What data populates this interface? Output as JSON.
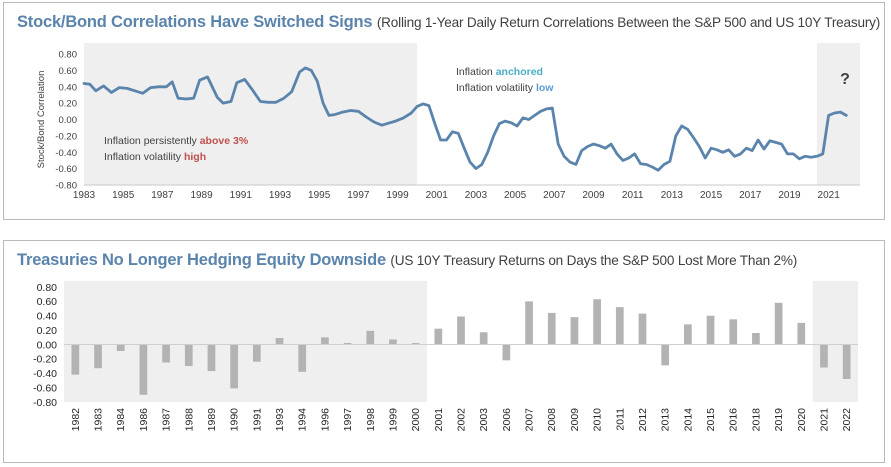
{
  "panel_top": {
    "title": "Stock/Bond Correlations Have Switched Signs",
    "subtitle": "(Rolling 1-Year Daily Return Correlations Between the S&P 500 and US 10Y Treasury)"
  },
  "panel_bottom": {
    "title": "Treasuries No Longer Hedging Equity Downside",
    "subtitle": "(US 10Y Treasury Returns on Days the S&P 500 Lost More Than 2%)"
  },
  "colors": {
    "line": "#5b84ad",
    "bars": "#b3b3b3",
    "shade": "#efefef",
    "text": "#404040",
    "red_highlight": "#c0504d",
    "teal_highlight": "#4bacc6",
    "blue_highlight": "#5b9bd5"
  },
  "chart_data": [
    {
      "type": "line",
      "title": "Stock/Bond Correlations Have Switched Signs",
      "subtitle": "(Rolling 1-Year Daily Return Correlations Between the S&P 500 and US 10Y Treasury)",
      "ylabel": "Stock/Bond Correlation",
      "xlabel": "",
      "ylim": [
        -0.8,
        0.8
      ],
      "yticks": [
        "0.80",
        "0.60",
        "0.40",
        "0.20",
        "0.00",
        "-0.20",
        "-0.40",
        "-0.60",
        "-0.80"
      ],
      "xticks": [
        "1983",
        "1985",
        "1987",
        "1989",
        "1991",
        "1993",
        "1995",
        "1997",
        "1999",
        "2001",
        "2003",
        "2005",
        "2007",
        "2009",
        "2011",
        "2013",
        "2015",
        "2017",
        "2019",
        "2021"
      ],
      "xlim": [
        1983,
        2022.6
      ],
      "shaded_periods": [
        [
          1983,
          2000
        ],
        [
          2020.4,
          2022.6
        ]
      ],
      "grid": false,
      "series": [
        {
          "x": [
            1983.0,
            1983.3,
            1983.6,
            1984.0,
            1984.4,
            1984.8,
            1985.2,
            1985.6,
            1986.0,
            1986.4,
            1986.8,
            1987.2,
            1987.5,
            1987.8,
            1988.2,
            1988.6,
            1988.9,
            1989.3,
            1989.8,
            1990.1,
            1990.5,
            1990.8,
            1991.2,
            1991.6,
            1992.0,
            1992.4,
            1992.8,
            1993.2,
            1993.6,
            1994.0,
            1994.3,
            1994.6,
            1994.9,
            1995.2,
            1995.5,
            1995.8,
            1996.2,
            1996.6,
            1997.0,
            1997.4,
            1997.8,
            1998.2,
            1998.6,
            1998.9,
            1999.3,
            1999.7,
            2000.0,
            2000.3,
            2000.6,
            2000.9,
            2001.2,
            2001.5,
            2001.8,
            2002.1,
            2002.4,
            2002.7,
            2003.0,
            2003.3,
            2003.6,
            2003.9,
            2004.2,
            2004.5,
            2004.8,
            2005.1,
            2005.4,
            2005.7,
            2006.0,
            2006.3,
            2006.6,
            2006.9,
            2007.2,
            2007.5,
            2007.8,
            2008.1,
            2008.4,
            2008.7,
            2009.0,
            2009.3,
            2009.6,
            2009.9,
            2010.2,
            2010.5,
            2010.8,
            2011.1,
            2011.4,
            2011.7,
            2012.0,
            2012.3,
            2012.6,
            2012.9,
            2013.2,
            2013.5,
            2013.8,
            2014.1,
            2014.4,
            2014.7,
            2015.0,
            2015.3,
            2015.6,
            2015.9,
            2016.2,
            2016.5,
            2016.8,
            2017.1,
            2017.4,
            2017.7,
            2018.0,
            2018.3,
            2018.6,
            2018.9,
            2019.2,
            2019.5,
            2019.8,
            2020.1,
            2020.4,
            2020.7,
            2021.0,
            2021.3,
            2021.6,
            2021.9
          ],
          "values": [
            0.44,
            0.43,
            0.35,
            0.41,
            0.33,
            0.39,
            0.38,
            0.35,
            0.32,
            0.39,
            0.4,
            0.4,
            0.46,
            0.26,
            0.25,
            0.26,
            0.48,
            0.52,
            0.27,
            0.2,
            0.22,
            0.45,
            0.49,
            0.36,
            0.22,
            0.21,
            0.21,
            0.26,
            0.34,
            0.58,
            0.63,
            0.6,
            0.47,
            0.2,
            0.05,
            0.06,
            0.09,
            0.11,
            0.1,
            0.03,
            -0.03,
            -0.07,
            -0.04,
            -0.02,
            0.02,
            0.08,
            0.16,
            0.19,
            0.17,
            -0.05,
            -0.25,
            -0.25,
            -0.15,
            -0.17,
            -0.35,
            -0.52,
            -0.6,
            -0.55,
            -0.4,
            -0.2,
            -0.05,
            -0.02,
            -0.04,
            -0.08,
            0.02,
            0.0,
            0.05,
            0.1,
            0.13,
            0.14,
            -0.3,
            -0.45,
            -0.52,
            -0.55,
            -0.38,
            -0.33,
            -0.3,
            -0.32,
            -0.35,
            -0.3,
            -0.42,
            -0.5,
            -0.47,
            -0.42,
            -0.54,
            -0.55,
            -0.58,
            -0.62,
            -0.55,
            -0.51,
            -0.2,
            -0.08,
            -0.12,
            -0.22,
            -0.33,
            -0.47,
            -0.35,
            -0.37,
            -0.4,
            -0.37,
            -0.45,
            -0.42,
            -0.35,
            -0.38,
            -0.25,
            -0.36,
            -0.26,
            -0.28,
            -0.3,
            -0.42,
            -0.42,
            -0.48,
            -0.45,
            -0.46,
            -0.45,
            -0.42,
            0.05,
            0.08,
            0.09,
            0.05
          ]
        }
      ],
      "annotations": [
        {
          "parts": [
            {
              "text": "Inflation persistently ",
              "highlight": false
            },
            {
              "text": "above 3%",
              "highlight": "red"
            }
          ]
        },
        {
          "parts": [
            {
              "text": "Inflation volatility ",
              "highlight": false
            },
            {
              "text": "high",
              "highlight": "red"
            }
          ]
        },
        {
          "parts": [
            {
              "text": "Inflation ",
              "highlight": false
            },
            {
              "text": "anchored",
              "highlight": "teal"
            }
          ]
        },
        {
          "parts": [
            {
              "text": "Inflation volatility ",
              "highlight": false
            },
            {
              "text": "low",
              "highlight": "blue"
            }
          ]
        },
        {
          "parts": [
            {
              "text": "?",
              "highlight": false
            }
          ]
        }
      ]
    },
    {
      "type": "bar",
      "title": "Treasuries No Longer Hedging Equity Downside",
      "subtitle": "(US 10Y Treasury Returns on Days the S&P 500 Lost More Than 2%)",
      "xlabel": "",
      "ylabel": "",
      "ylim": [
        -0.8,
        0.8
      ],
      "yticks": [
        "0.80",
        "0.60",
        "0.40",
        "0.20",
        "0.00",
        "-0.20",
        "-0.40",
        "-0.60",
        "-0.80"
      ],
      "grid": false,
      "categories": [
        "1982",
        "1983",
        "1984",
        "1986",
        "1987",
        "1988",
        "1989",
        "1990",
        "1991",
        "1993",
        "1994",
        "1996",
        "1997",
        "1998",
        "1999",
        "2000",
        "2001",
        "2002",
        "2003",
        "2006",
        "2007",
        "2008",
        "2009",
        "2010",
        "2011",
        "2012",
        "2013",
        "2014",
        "2015",
        "2016",
        "2018",
        "2019",
        "2020",
        "2021",
        "2022"
      ],
      "values": [
        -0.42,
        -0.33,
        -0.09,
        -0.7,
        -0.25,
        -0.3,
        -0.37,
        -0.61,
        -0.24,
        0.09,
        -0.38,
        0.1,
        0.02,
        0.19,
        0.07,
        0.02,
        0.22,
        0.39,
        0.17,
        -0.22,
        0.6,
        0.44,
        0.38,
        0.63,
        0.52,
        0.43,
        -0.29,
        0.28,
        0.4,
        0.35,
        0.16,
        0.58,
        0.3,
        -0.32,
        -0.48
      ],
      "shaded_categories": [
        [
          "1982",
          "2000"
        ],
        [
          "2021",
          "2022"
        ]
      ]
    }
  ]
}
